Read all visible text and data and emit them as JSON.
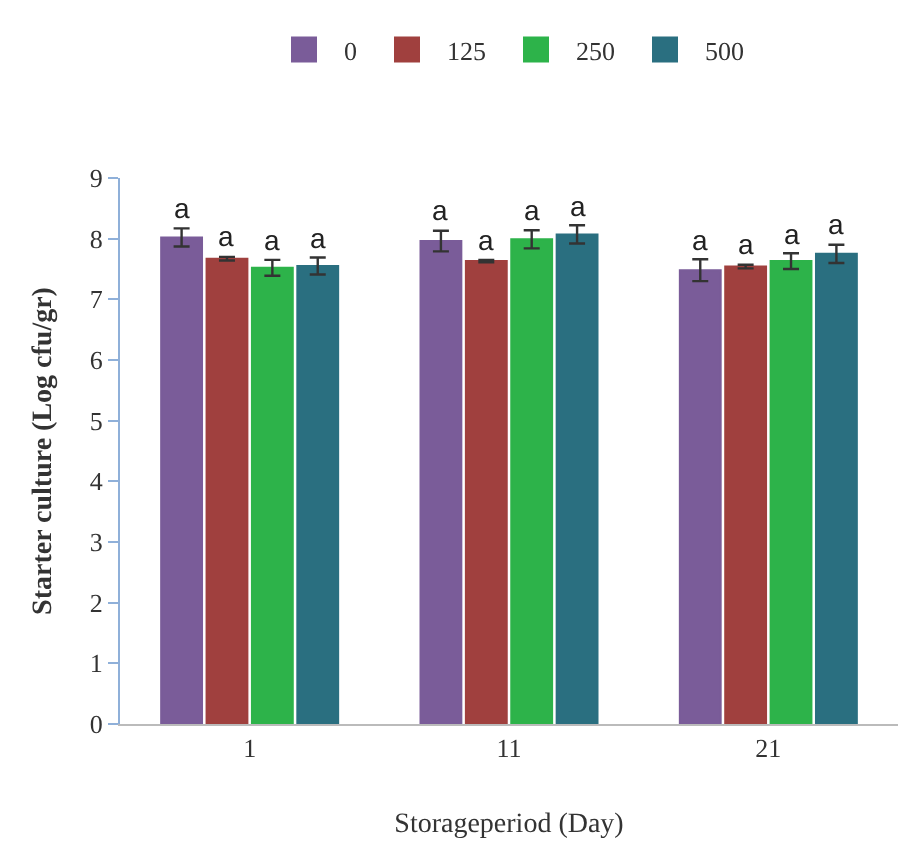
{
  "chart_data": {
    "type": "bar",
    "xlabel": "Storageperiod (Day)",
    "ylabel": "Starter culture (Log cfu/gr)",
    "categories": [
      "1",
      "11",
      "21"
    ],
    "series": [
      {
        "name": "0",
        "color": "#7a5c99",
        "values": [
          8.02,
          7.96,
          7.48
        ],
        "errors": [
          0.15,
          0.17,
          0.18
        ],
        "value_labels": [
          "a",
          "a",
          "a"
        ]
      },
      {
        "name": "125",
        "color": "#a0403e",
        "values": [
          7.67,
          7.63,
          7.54
        ],
        "errors": [
          0.03,
          0.02,
          0.03
        ],
        "value_labels": [
          "a",
          "a",
          "a"
        ]
      },
      {
        "name": "250",
        "color": "#2db34a",
        "values": [
          7.52,
          7.99,
          7.63
        ],
        "errors": [
          0.13,
          0.15,
          0.13
        ],
        "value_labels": [
          "a",
          "a",
          "a"
        ]
      },
      {
        "name": "500",
        "color": "#2a6f80",
        "values": [
          7.55,
          8.07,
          7.75
        ],
        "errors": [
          0.14,
          0.15,
          0.15
        ],
        "value_labels": [
          "a",
          "a",
          "a"
        ]
      }
    ],
    "ylim": [
      0,
      9
    ],
    "yticks": [
      0,
      1,
      2,
      3,
      4,
      5,
      6,
      7,
      8,
      9
    ],
    "legend": "top"
  }
}
